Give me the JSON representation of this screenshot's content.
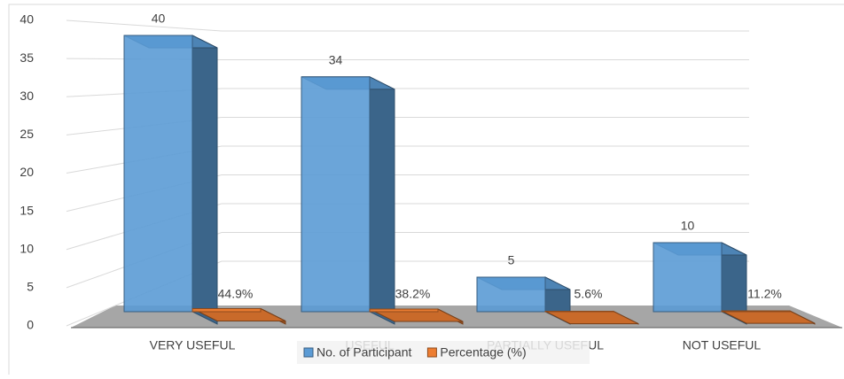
{
  "chart_data": {
    "type": "bar3d",
    "categories": [
      "VERY USEFUL",
      "USEFUL",
      "PARTIALLY USEFUL",
      "NOT USEFUL"
    ],
    "series": [
      {
        "name": "No. of Participant",
        "color": "#5b9bd5",
        "values": [
          40,
          34,
          5,
          10
        ]
      },
      {
        "name": "Percentage (%)",
        "color": "#ed7d31",
        "values": [
          0.449,
          0.382,
          0.056,
          0.112
        ],
        "value_labels": [
          "44.9%",
          "38.2%",
          "5.6%",
          "11.2%"
        ]
      }
    ],
    "ylim": [
      0,
      40
    ],
    "yticks": [
      0,
      5,
      10,
      15,
      20,
      25,
      30,
      35,
      40
    ],
    "grid": true,
    "legend": "bottom"
  }
}
